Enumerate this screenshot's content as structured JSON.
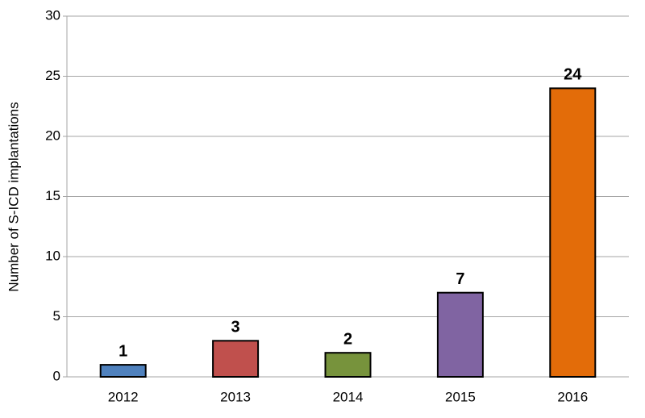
{
  "chart_data": {
    "type": "bar",
    "ylabel": "Number of S-ICD implantations",
    "categories": [
      "2012",
      "2013",
      "2014",
      "2015",
      "2016"
    ],
    "values": [
      1,
      3,
      2,
      7,
      24
    ],
    "colors": [
      "#4f81bd",
      "#c0504d",
      "#77933c",
      "#8064a2",
      "#e36c09"
    ],
    "ylim": [
      0,
      30
    ],
    "yticks": [
      0,
      5,
      10,
      15,
      20,
      25,
      30
    ],
    "grid": true,
    "data_labels": true
  }
}
